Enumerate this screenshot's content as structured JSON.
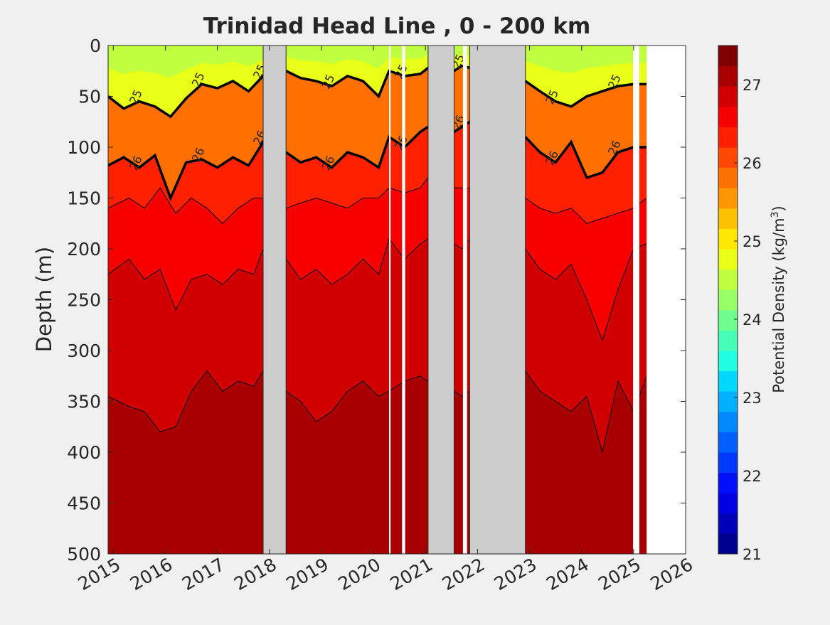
{
  "chart_data": {
    "type": "heatmap",
    "title": "Trinidad Head Line , 0 - 200 km",
    "ylabel": "Depth (m)",
    "xlabel": "",
    "colorbar_label": "Potential Density (kg/m",
    "colorbar_label_sup": "3",
    "colorbar_label_close": ")",
    "xlim": [
      2014.9,
      2026
    ],
    "ylim": [
      500,
      0
    ],
    "y_reversed": true,
    "xticks": [
      2015,
      2016,
      2017,
      2018,
      2019,
      2020,
      2021,
      2022,
      2023,
      2024,
      2025,
      2026
    ],
    "yticks": [
      0,
      50,
      100,
      150,
      200,
      250,
      300,
      350,
      400,
      450,
      500
    ],
    "clim": [
      21,
      27.5
    ],
    "colorbar_ticks": [
      21,
      22,
      23,
      24,
      25,
      26,
      27
    ],
    "colorbar_steps": [
      "#00008f",
      "#0000b8",
      "#0000e0",
      "#0010ff",
      "#0038ff",
      "#0060ff",
      "#0088ff",
      "#00b0ff",
      "#00d8ff",
      "#20ffdf",
      "#48ffb7",
      "#70ff8f",
      "#98ff67",
      "#c0ff3f",
      "#e8ff17",
      "#ffe800",
      "#ffc000",
      "#ff9800",
      "#ff7000",
      "#ff4800",
      "#ff2000",
      "#f80000",
      "#d00000",
      "#a80000",
      "#800000"
    ],
    "gaps": [
      [
        2017.88,
        2018.32
      ],
      [
        2021.05,
        2021.55
      ],
      [
        2021.85,
        2022.92
      ]
    ],
    "no_data": [
      [
        2020.3,
        2020.33
      ],
      [
        2020.55,
        2020.61
      ],
      [
        2021.72,
        2021.8
      ],
      [
        2024.99,
        2025.11
      ],
      [
        2025.25,
        2026
      ]
    ],
    "contour_labels": [
      "25",
      "25",
      "25",
      "25",
      "25",
      "25",
      "25",
      "25",
      "26",
      "26",
      "26",
      "26",
      "26",
      "26",
      "26",
      "26"
    ],
    "density_lines": [
      {
        "sigma": 25,
        "x": [
          2014.9,
          2015.2,
          2015.5,
          2015.8,
          2016.1,
          2016.4,
          2016.7,
          2017.0,
          2017.3,
          2017.6,
          2017.88,
          2018.32,
          2018.6,
          2018.9,
          2019.2,
          2019.5,
          2019.8,
          2020.1,
          2020.3,
          2020.6,
          2020.9,
          2021.05,
          2021.55,
          2021.7,
          2021.85,
          2022.92,
          2023.2,
          2023.5,
          2023.8,
          2024.1,
          2024.4,
          2024.7,
          2025.0,
          2025.25
        ],
        "y": [
          50,
          62,
          55,
          60,
          70,
          52,
          38,
          42,
          35,
          45,
          30,
          25,
          32,
          35,
          40,
          30,
          35,
          50,
          25,
          30,
          28,
          22,
          25,
          20,
          22,
          35,
          45,
          55,
          60,
          50,
          45,
          40,
          38,
          38
        ]
      },
      {
        "sigma": 26,
        "x": [
          2014.9,
          2015.2,
          2015.5,
          2015.8,
          2016.1,
          2016.4,
          2016.7,
          2017.0,
          2017.3,
          2017.6,
          2017.88,
          2018.32,
          2018.6,
          2018.9,
          2019.2,
          2019.5,
          2019.8,
          2020.1,
          2020.3,
          2020.6,
          2020.9,
          2021.05,
          2021.55,
          2021.7,
          2021.85,
          2022.92,
          2023.2,
          2023.5,
          2023.8,
          2024.1,
          2024.4,
          2024.7,
          2025.0,
          2025.25
        ],
        "y": [
          118,
          110,
          120,
          108,
          150,
          115,
          112,
          120,
          110,
          118,
          95,
          105,
          115,
          110,
          120,
          105,
          110,
          120,
          90,
          100,
          85,
          80,
          85,
          80,
          75,
          90,
          105,
          115,
          95,
          130,
          125,
          105,
          100,
          100
        ]
      },
      {
        "sigma": 26.5,
        "x": [
          2014.9,
          2015.3,
          2015.6,
          2015.9,
          2016.2,
          2016.5,
          2016.8,
          2017.1,
          2017.4,
          2017.7,
          2017.88,
          2018.32,
          2018.6,
          2018.9,
          2019.2,
          2019.5,
          2019.8,
          2020.1,
          2020.3,
          2020.6,
          2020.9,
          2021.05,
          2021.55,
          2021.7,
          2021.85,
          2022.92,
          2023.2,
          2023.5,
          2023.8,
          2024.1,
          2024.4,
          2024.7,
          2025.0,
          2025.25
        ],
        "y": [
          160,
          150,
          160,
          140,
          165,
          150,
          160,
          175,
          160,
          150,
          150,
          160,
          155,
          150,
          155,
          160,
          150,
          150,
          140,
          145,
          140,
          130,
          140,
          140,
          140,
          150,
          160,
          165,
          160,
          175,
          170,
          165,
          160,
          150
        ]
      },
      {
        "sigma": 26.75,
        "x": [
          2014.9,
          2015.3,
          2015.6,
          2015.9,
          2016.2,
          2016.5,
          2016.8,
          2017.1,
          2017.4,
          2017.7,
          2017.88,
          2018.32,
          2018.6,
          2018.9,
          2019.2,
          2019.5,
          2019.8,
          2020.1,
          2020.3,
          2020.6,
          2020.9,
          2021.05,
          2021.55,
          2021.7,
          2021.85,
          2022.92,
          2023.2,
          2023.5,
          2023.8,
          2024.1,
          2024.4,
          2024.7,
          2025.0,
          2025.25
        ],
        "y": [
          225,
          210,
          230,
          220,
          260,
          230,
          225,
          235,
          220,
          225,
          200,
          210,
          230,
          220,
          235,
          225,
          210,
          225,
          190,
          210,
          195,
          190,
          195,
          200,
          190,
          200,
          220,
          230,
          215,
          250,
          290,
          240,
          200,
          195
        ]
      },
      {
        "sigma": 26.95,
        "x": [
          2014.9,
          2015.3,
          2015.6,
          2015.9,
          2016.2,
          2016.5,
          2016.8,
          2017.1,
          2017.4,
          2017.7,
          2017.88,
          2018.32,
          2018.6,
          2018.9,
          2019.2,
          2019.5,
          2019.8,
          2020.1,
          2020.3,
          2020.6,
          2020.9,
          2021.05,
          2021.55,
          2021.7,
          2021.85,
          2022.92,
          2023.2,
          2023.5,
          2023.8,
          2024.1,
          2024.4,
          2024.7,
          2025.0,
          2025.25
        ],
        "y": [
          345,
          355,
          360,
          380,
          375,
          340,
          320,
          340,
          330,
          335,
          320,
          340,
          350,
          370,
          360,
          340,
          330,
          345,
          340,
          330,
          325,
          330,
          340,
          345,
          340,
          320,
          340,
          350,
          360,
          345,
          400,
          330,
          360,
          325
        ]
      }
    ]
  }
}
